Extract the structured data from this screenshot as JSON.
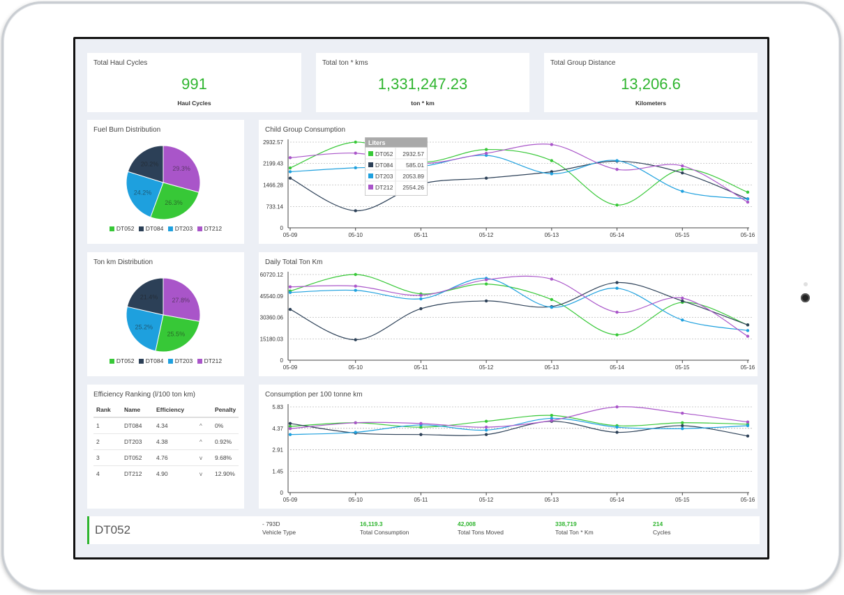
{
  "colors": {
    "DT052": "#37c837",
    "DT084": "#2c4057",
    "DT203": "#1ea0de",
    "DT212": "#a955c9",
    "accent": "#2fb52f"
  },
  "kpis": [
    {
      "title": "Total Haul Cycles",
      "value": "991",
      "unit": "Haul Cycles"
    },
    {
      "title": "Total ton * kms",
      "value": "1,331,247.23",
      "unit": "ton * km"
    },
    {
      "title": "Total Group Distance",
      "value": "13,206.6",
      "unit": "Kilometers"
    }
  ],
  "fuel_pie": {
    "title": "Fuel Burn Distribution",
    "legend": [
      "DT052",
      "DT084",
      "DT203",
      "DT212"
    ]
  },
  "ton_pie": {
    "title": "Ton km Distribution",
    "legend": [
      "DT052",
      "DT084",
      "DT203",
      "DT212"
    ]
  },
  "ranking": {
    "title": "Efficiency Ranking (l/100 ton km)",
    "headers": [
      "Rank",
      "Name",
      "Efficiency",
      "",
      "Penalty"
    ],
    "rows": [
      [
        "1",
        "DT084",
        "4.34",
        "^",
        "0%"
      ],
      [
        "2",
        "DT203",
        "4.38",
        "^",
        "0.92%"
      ],
      [
        "3",
        "DT052",
        "4.76",
        "v",
        "9.68%"
      ],
      [
        "4",
        "DT212",
        "4.90",
        "v",
        "12.90%"
      ]
    ]
  },
  "tooltip": {
    "header": "Liters",
    "rows": [
      {
        "name": "DT052",
        "value": "2932.57"
      },
      {
        "name": "DT084",
        "value": "585.01"
      },
      {
        "name": "DT203",
        "value": "2053.89"
      },
      {
        "name": "DT212",
        "value": "2554.26"
      }
    ]
  },
  "vehicle": {
    "name": "DT052",
    "stats": [
      {
        "value": "- 793D",
        "label": "Vehicle Type",
        "plain": true
      },
      {
        "value": "16,119.3",
        "label": "Total Consumption"
      },
      {
        "value": "42,008",
        "label": "Total Tons Moved"
      },
      {
        "value": "338,719",
        "label": "Total Ton * Km"
      },
      {
        "value": "214",
        "label": "Cycles"
      }
    ]
  },
  "chart_data": [
    {
      "type": "pie",
      "title": "Fuel Burn Distribution",
      "labels": [
        "DT052",
        "DT084",
        "DT203",
        "DT212"
      ],
      "values": [
        26.3,
        20.2,
        24.2,
        29.3
      ],
      "value_labels": [
        "26.3%",
        "20.2%",
        "24.2%",
        "29.3%"
      ],
      "legend": "bottom"
    },
    {
      "type": "pie",
      "title": "Ton km Distribution",
      "labels": [
        "DT052",
        "DT084",
        "DT203",
        "DT212"
      ],
      "values": [
        25.5,
        21.4,
        25.2,
        27.8
      ],
      "value_labels": [
        "25.5%",
        "21.4%",
        "25.2%",
        "27.8%"
      ],
      "legend": "bottom"
    },
    {
      "type": "line",
      "title": "Child Group Consumption",
      "x": [
        "05-09",
        "05-10",
        "05-11",
        "05-12",
        "05-13",
        "05-14",
        "05-15",
        "05-16"
      ],
      "yticks": [
        "0",
        "733.14",
        "1466.28",
        "2199.43",
        "2932.57"
      ],
      "ylim": [
        0,
        2932.57
      ],
      "grid": true,
      "series": [
        {
          "name": "DT052",
          "values": [
            2050,
            2932.57,
            2250,
            2680,
            2300,
            780,
            2000,
            1220
          ]
        },
        {
          "name": "DT084",
          "values": [
            1700,
            585.01,
            1500,
            1700,
            1920,
            2280,
            1880,
            990
          ]
        },
        {
          "name": "DT203",
          "values": [
            1920,
            2053.89,
            2100,
            2480,
            1850,
            2300,
            1250,
            990
          ]
        },
        {
          "name": "DT212",
          "values": [
            2400,
            2554.26,
            2200,
            2550,
            2850,
            2000,
            2120,
            880
          ]
        }
      ]
    },
    {
      "type": "line",
      "title": "Daily Total Ton Km",
      "x": [
        "05-09",
        "05-10",
        "05-11",
        "05-12",
        "05-13",
        "05-14",
        "05-15",
        "05-16"
      ],
      "yticks": [
        "0",
        "15180.03",
        "30360.06",
        "45540.09",
        "60720.12"
      ],
      "ylim": [
        0,
        60720.12
      ],
      "grid": true,
      "series": [
        {
          "name": "DT052",
          "values": [
            49000,
            60720,
            47000,
            54000,
            43000,
            18000,
            41000,
            25000
          ]
        },
        {
          "name": "DT084",
          "values": [
            36000,
            14500,
            36500,
            42000,
            38000,
            55000,
            42000,
            25000
          ]
        },
        {
          "name": "DT203",
          "values": [
            48000,
            49500,
            43500,
            58000,
            37500,
            51000,
            28500,
            21000
          ]
        },
        {
          "name": "DT212",
          "values": [
            52000,
            52500,
            46000,
            57000,
            57500,
            34000,
            44000,
            17000
          ]
        }
      ]
    },
    {
      "type": "line",
      "title": "Consumption per 100 tonne km",
      "x": [
        "05-09",
        "05-10",
        "05-11",
        "05-12",
        "05-13",
        "05-14",
        "05-15",
        "05-16"
      ],
      "yticks": [
        "0",
        "1.45",
        "2.91",
        "4.37",
        "5.83"
      ],
      "ylim": [
        0,
        5.83
      ],
      "grid": true,
      "series": [
        {
          "name": "DT052",
          "values": [
            4.5,
            4.75,
            4.45,
            4.85,
            5.25,
            4.55,
            4.75,
            4.65
          ]
        },
        {
          "name": "DT084",
          "values": [
            4.7,
            4.05,
            3.95,
            3.95,
            4.85,
            4.1,
            4.55,
            3.85
          ]
        },
        {
          "name": "DT203",
          "values": [
            3.95,
            4.1,
            4.6,
            4.25,
            5.05,
            4.45,
            4.35,
            4.55
          ]
        },
        {
          "name": "DT212",
          "values": [
            4.35,
            4.75,
            4.7,
            4.45,
            4.9,
            5.83,
            5.4,
            4.8
          ]
        }
      ]
    }
  ]
}
